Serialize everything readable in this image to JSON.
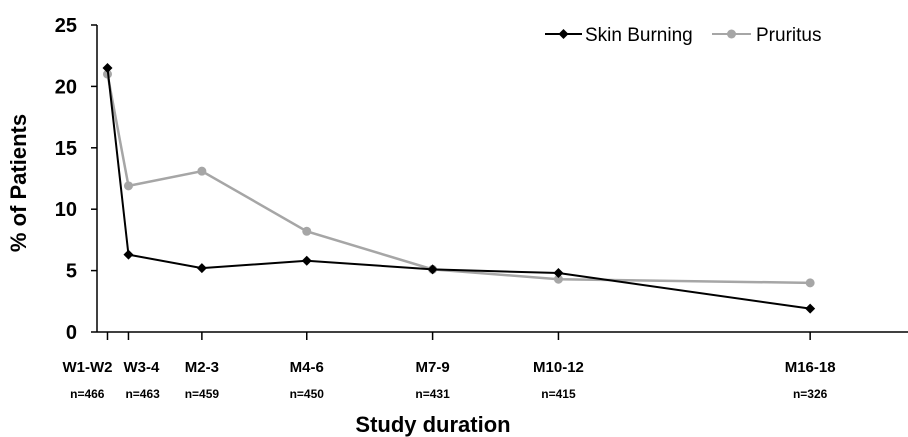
{
  "chart_data": {
    "type": "line",
    "xlabel": "Study duration",
    "ylabel": "% of Patients",
    "ylim": [
      0,
      25
    ],
    "yticks": [
      0,
      5,
      10,
      15,
      20,
      25
    ],
    "categories": [
      "W1-W2",
      "W3-4",
      "M2-3",
      "M4-6",
      "M7-9",
      "M10-12",
      "M16-18"
    ],
    "n_labels": [
      "n=466",
      "n=463",
      "n=459",
      "n=450",
      "n=431",
      "n=415",
      "n=326"
    ],
    "x_months": [
      0.25,
      0.75,
      2.5,
      5,
      8,
      11,
      17
    ],
    "x_range": [
      0,
      20
    ],
    "series": [
      {
        "name": "Skin Burning",
        "color": "#000000",
        "marker": "diamond",
        "values": [
          21.5,
          6.3,
          5.2,
          5.8,
          5.1,
          4.8,
          1.9
        ]
      },
      {
        "name": "Pruritus",
        "color": "#a6a6a6",
        "marker": "circle",
        "values": [
          21.0,
          11.9,
          13.1,
          8.2,
          5.1,
          4.3,
          4.0
        ]
      }
    ],
    "legend_position": "top-right",
    "grid": false
  }
}
